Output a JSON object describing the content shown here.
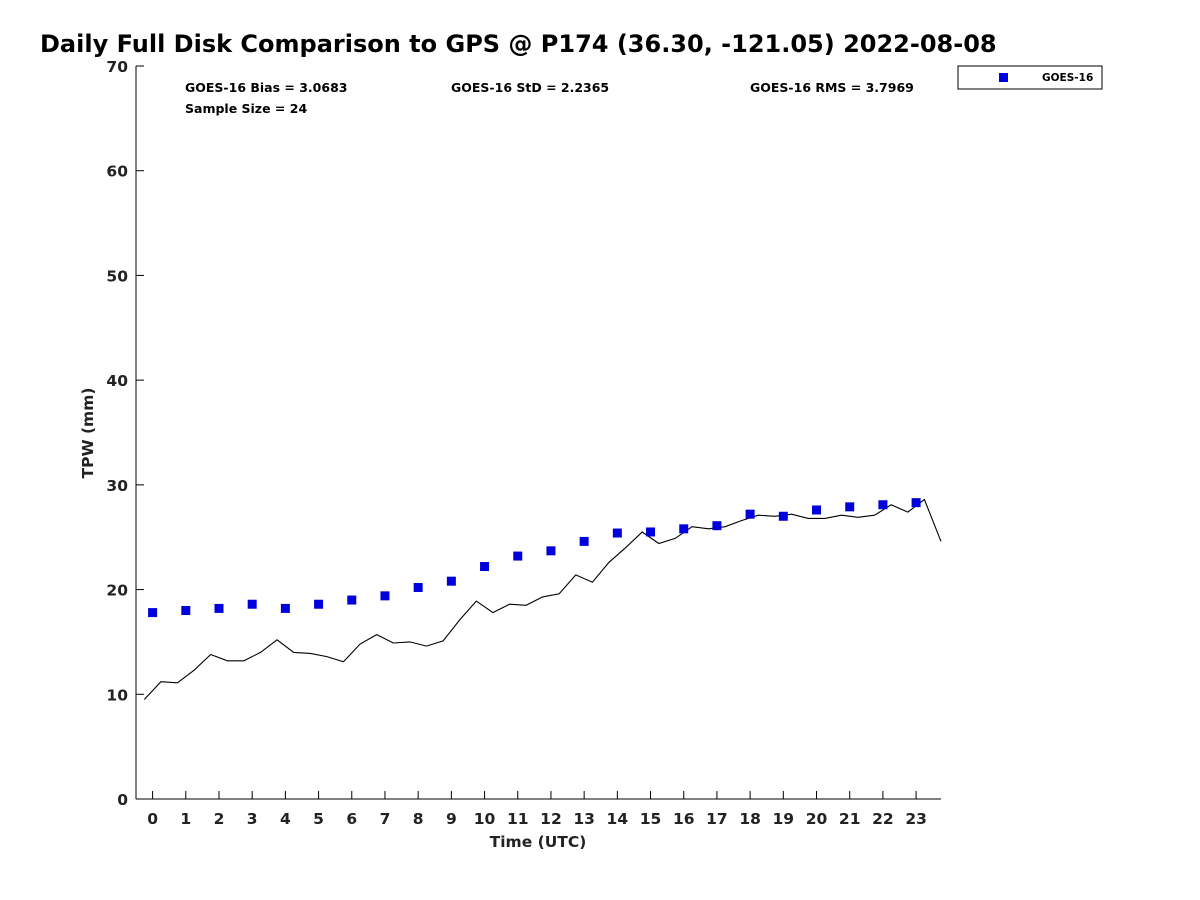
{
  "title": "Daily Full Disk Comparison to GPS @ P174 (36.30, -121.05) 2022-08-08",
  "stats": {
    "bias": "GOES-16 Bias = 3.0683",
    "std": "GOES-16 StD = 2.2365",
    "rms": "GOES-16 RMS = 3.7969",
    "sample": "Sample Size = 24"
  },
  "colors": {
    "goes": "#0000dd",
    "gps_line": "#000000",
    "axis": "#000000"
  },
  "chart_data": {
    "type": "scatter",
    "xlabel": "Time (UTC)",
    "ylabel": "TPW (mm)",
    "xlim": [
      -0.5,
      23.75
    ],
    "ylim": [
      0,
      70
    ],
    "xticks": [
      0,
      1,
      2,
      3,
      4,
      5,
      6,
      7,
      8,
      9,
      10,
      11,
      12,
      13,
      14,
      15,
      16,
      17,
      18,
      19,
      20,
      21,
      22,
      23
    ],
    "yticks": [
      0,
      10,
      20,
      30,
      40,
      50,
      60,
      70
    ],
    "grid": false,
    "legend_position": "top-right, outside plot",
    "series": [
      {
        "name": "GOES-16",
        "kind": "scatter",
        "marker": "square",
        "x": [
          0,
          1,
          2,
          3,
          4,
          5,
          6,
          7,
          8,
          9,
          10,
          11,
          12,
          13,
          14,
          15,
          16,
          17,
          18,
          19,
          20,
          21,
          22,
          23
        ],
        "y": [
          17.8,
          18.0,
          18.2,
          18.6,
          18.2,
          18.6,
          19.0,
          19.4,
          20.2,
          20.8,
          22.2,
          23.2,
          23.7,
          24.6,
          25.4,
          25.5,
          25.8,
          26.1,
          27.2,
          27.0,
          27.6,
          27.9,
          28.1,
          28.3
        ]
      },
      {
        "kind": "line",
        "x": [
          -0.25,
          0.25,
          0.75,
          1.25,
          1.75,
          2.25,
          2.75,
          3.25,
          3.75,
          4.25,
          4.75,
          5.25,
          5.75,
          6.25,
          6.75,
          7.25,
          7.75,
          8.25,
          8.75,
          9.25,
          9.75,
          10.25,
          10.75,
          11.25,
          11.75,
          12.25,
          12.75,
          13.25,
          13.75,
          14.25,
          14.75,
          15.25,
          15.75,
          16.25,
          16.75,
          17.25,
          17.75,
          18.25,
          18.75,
          19.25,
          19.75,
          20.25,
          20.75,
          21.25,
          21.75,
          22.25,
          22.75,
          23.25,
          23.75
        ],
        "y": [
          9.5,
          11.2,
          11.1,
          12.3,
          13.8,
          13.2,
          13.2,
          14.0,
          15.2,
          14.0,
          13.9,
          13.6,
          13.1,
          14.8,
          15.7,
          14.9,
          15.0,
          14.6,
          15.1,
          17.1,
          18.9,
          17.8,
          18.6,
          18.5,
          19.3,
          19.6,
          21.4,
          20.7,
          22.6,
          24.0,
          25.5,
          24.4,
          24.9,
          26.0,
          25.8,
          26.0,
          26.6,
          27.1,
          27.0,
          27.2,
          26.8,
          26.8,
          27.1,
          26.9,
          27.1,
          28.1,
          27.4,
          28.6,
          24.6
        ]
      }
    ]
  }
}
